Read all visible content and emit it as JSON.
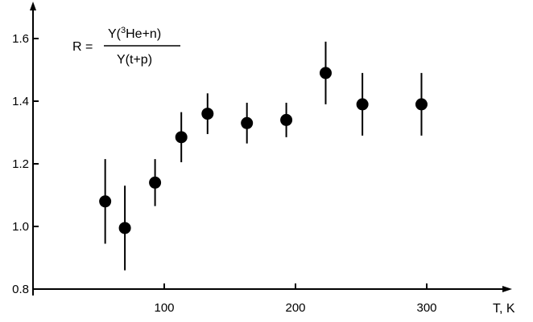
{
  "chart_data": {
    "type": "scatter",
    "xlabel": "T, K",
    "ylabel": "",
    "xlim": [
      0,
      360
    ],
    "ylim": [
      0.8,
      1.65
    ],
    "x_ticks": [
      "100",
      "200",
      "300"
    ],
    "y_ticks": [
      "0.8",
      "1.0",
      "1.2",
      "1.4",
      "1.6"
    ],
    "grid": false,
    "annotation": {
      "lhs": "R =",
      "numerator": "Y(3He+n)",
      "numerator_parts": {
        "prefix": "Y(",
        "sup": "3",
        "rest": "He+n)"
      },
      "denominator": "Y(t+p)"
    },
    "series": [
      {
        "x": [
          55,
          70,
          93,
          113,
          133,
          163,
          193,
          223,
          251,
          296
        ],
        "y": [
          1.08,
          0.995,
          1.14,
          1.285,
          1.36,
          1.33,
          1.34,
          1.49,
          1.39,
          1.39
        ],
        "err": [
          0.135,
          0.135,
          0.075,
          0.08,
          0.065,
          0.065,
          0.055,
          0.1,
          0.1,
          0.1
        ]
      }
    ]
  }
}
